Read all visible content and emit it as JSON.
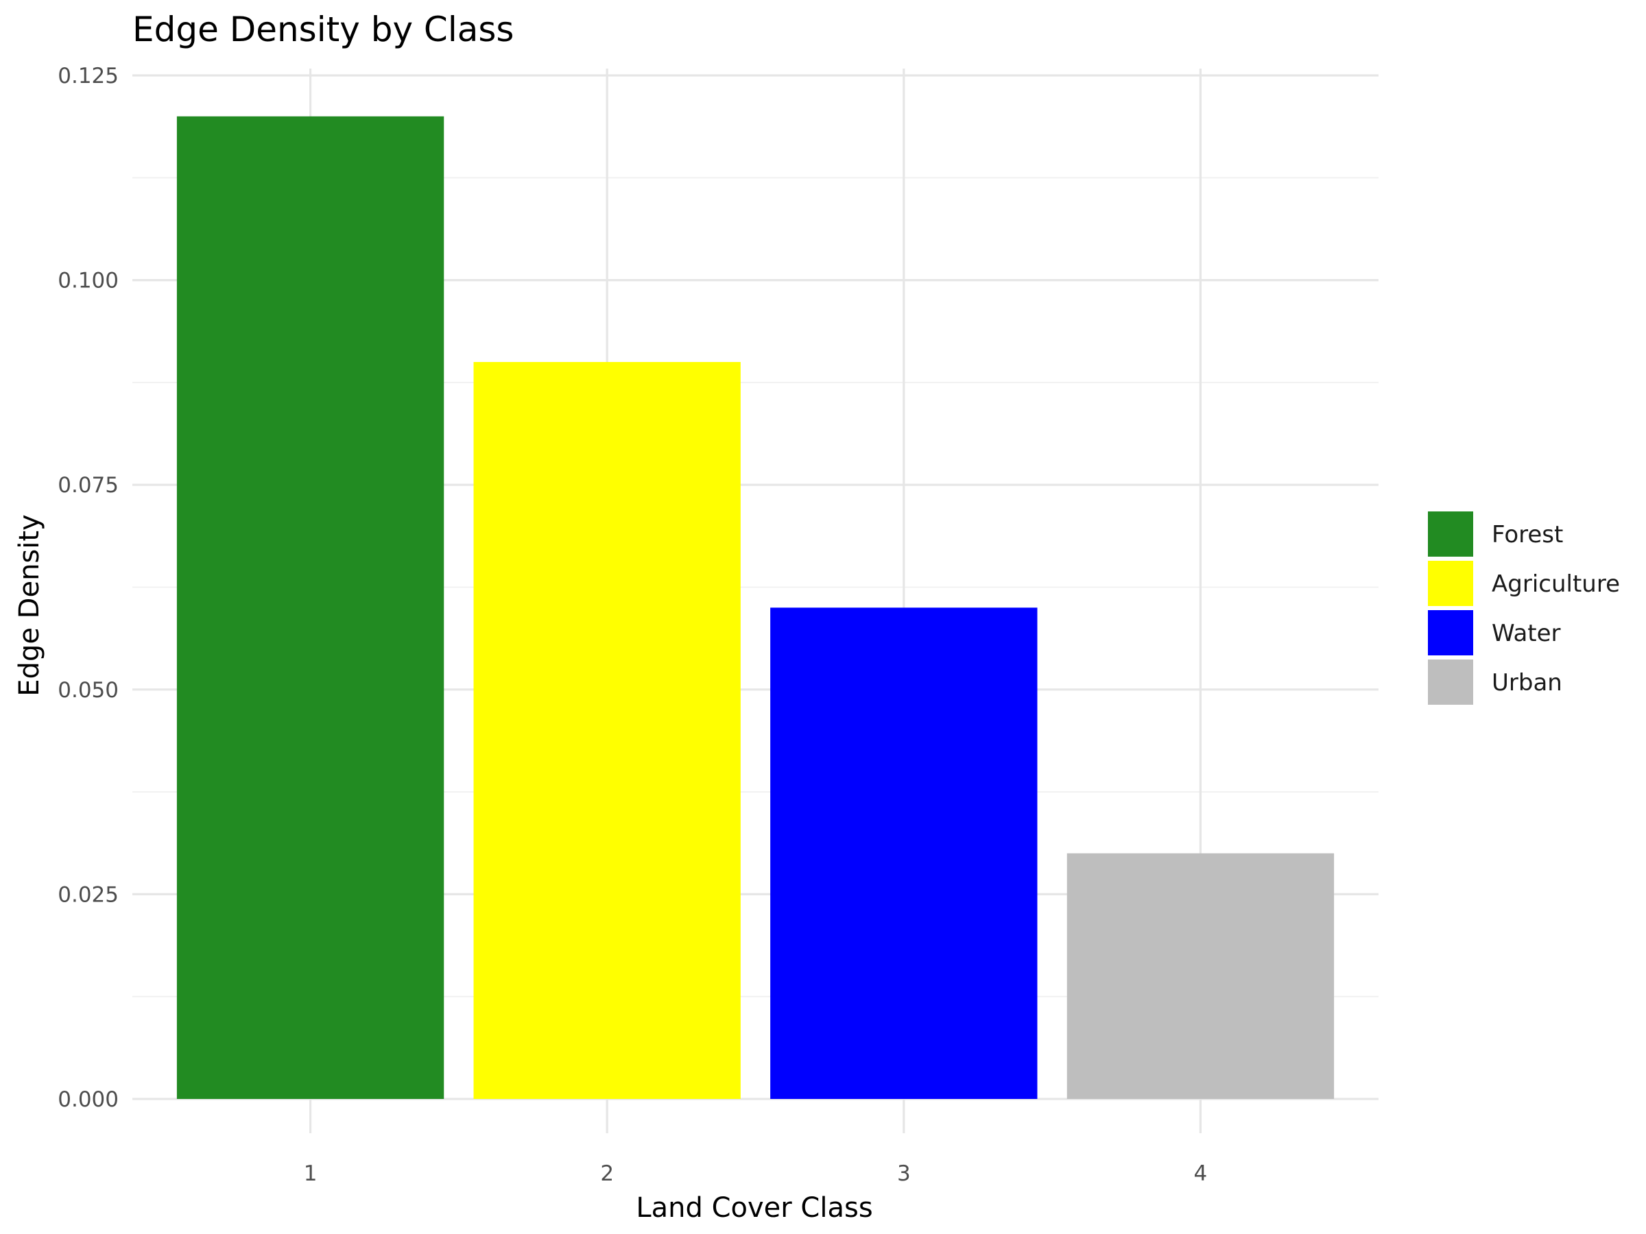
{
  "chart_data": {
    "type": "bar",
    "title": "Edge Density by Class",
    "xlabel": "Land Cover Class",
    "ylabel": "Edge Density",
    "categories": [
      "1",
      "2",
      "3",
      "4"
    ],
    "values": [
      0.12,
      0.09,
      0.06,
      0.03
    ],
    "ylim": [
      0,
      0.125
    ],
    "yticks": [
      0,
      0.025,
      0.05,
      0.075,
      0.1,
      0.125
    ],
    "ytick_labels": [
      "0.000",
      "0.025",
      "0.050",
      "0.075",
      "0.100",
      "0.125"
    ],
    "grid": true,
    "legend_position": "right",
    "legend": [
      {
        "label": "Forest",
        "color": "#228B22"
      },
      {
        "label": "Agriculture",
        "color": "#FFFF00"
      },
      {
        "label": "Water",
        "color": "#0000FF"
      },
      {
        "label": "Urban",
        "color": "#BEBEBE"
      }
    ]
  }
}
